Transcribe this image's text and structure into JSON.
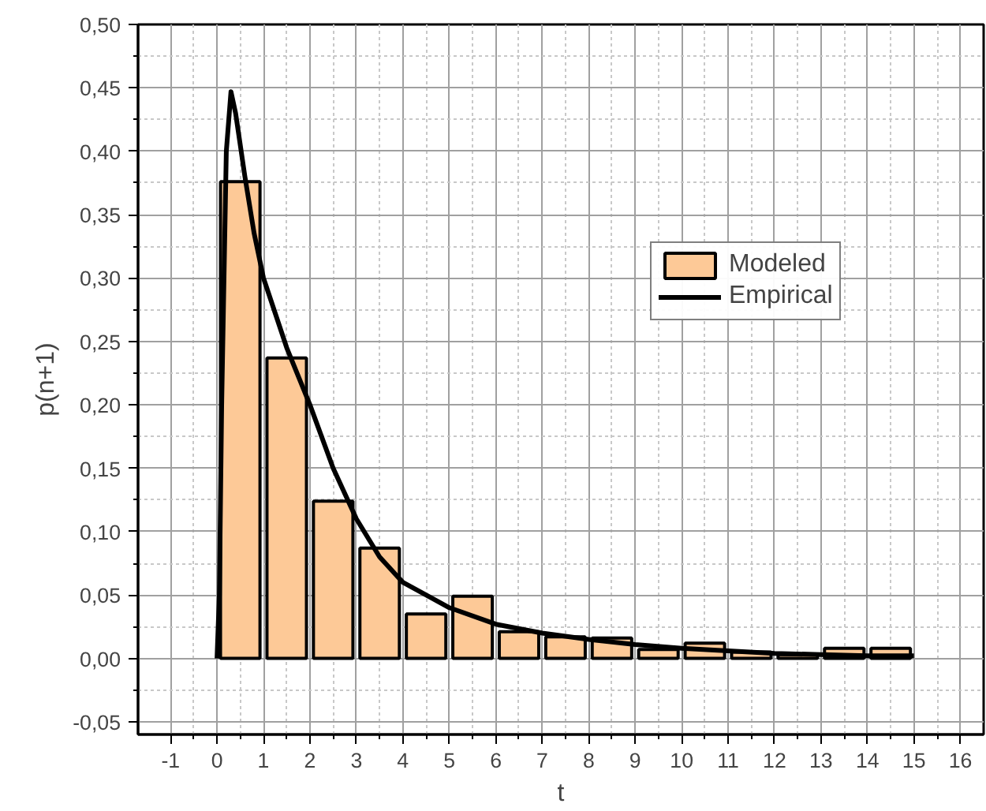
{
  "chart_data": {
    "type": "bar",
    "xlabel": "t",
    "ylabel": "p(n+1)",
    "xlim": [
      -1.7,
      16.5
    ],
    "ylim": [
      -0.06,
      0.5
    ],
    "xticks": [
      -1,
      0,
      1,
      2,
      3,
      4,
      5,
      6,
      7,
      8,
      9,
      10,
      11,
      12,
      13,
      14,
      15,
      16
    ],
    "yticks": [
      {
        "value": -0.05,
        "label": "-0,05"
      },
      {
        "value": 0,
        "label": "0,00"
      },
      {
        "value": 0.05,
        "label": "0,05"
      },
      {
        "value": 0.1,
        "label": "0,10"
      },
      {
        "value": 0.15,
        "label": "0,15"
      },
      {
        "value": 0.2,
        "label": "0,20"
      },
      {
        "value": 0.25,
        "label": "0,25"
      },
      {
        "value": 0.3,
        "label": "0,30"
      },
      {
        "value": 0.35,
        "label": "0,35"
      },
      {
        "value": 0.4,
        "label": "0,40"
      },
      {
        "value": 0.45,
        "label": "0,45"
      },
      {
        "value": 0.5,
        "label": "0,50"
      }
    ],
    "grid": true,
    "legend": "top right",
    "series": [
      {
        "name": "Modeled",
        "color": "#fdc997",
        "x": [
          0.5,
          1.5,
          2.5,
          3.5,
          4.5,
          5.5,
          6.5,
          7.5,
          8.5,
          9.5,
          10.5,
          11.5,
          12.5,
          13.5,
          14.5
        ],
        "values": [
          0.376,
          0.237,
          0.124,
          0.087,
          0.035,
          0.049,
          0.021,
          0.017,
          0.016,
          0.007,
          0.012,
          0.005,
          0.003,
          0.008,
          0.008
        ]
      },
      {
        "name": "Empirical",
        "type": "line",
        "color": "#000000",
        "line_style": "solid",
        "x": [
          0,
          0.05,
          0.1,
          0.2,
          0.3,
          0.4,
          0.6,
          0.8,
          1,
          1.5,
          2,
          2.5,
          3,
          3.5,
          4,
          5,
          6,
          7,
          8,
          9,
          10,
          11,
          12,
          13,
          14,
          15
        ],
        "values": [
          0,
          0.05,
          0.2,
          0.4,
          0.447,
          0.43,
          0.38,
          0.335,
          0.3,
          0.245,
          0.2,
          0.15,
          0.11,
          0.08,
          0.06,
          0.04,
          0.027,
          0.02,
          0.015,
          0.011,
          0.008,
          0.006,
          0.004,
          0.003,
          0.002,
          0.002
        ]
      }
    ]
  }
}
